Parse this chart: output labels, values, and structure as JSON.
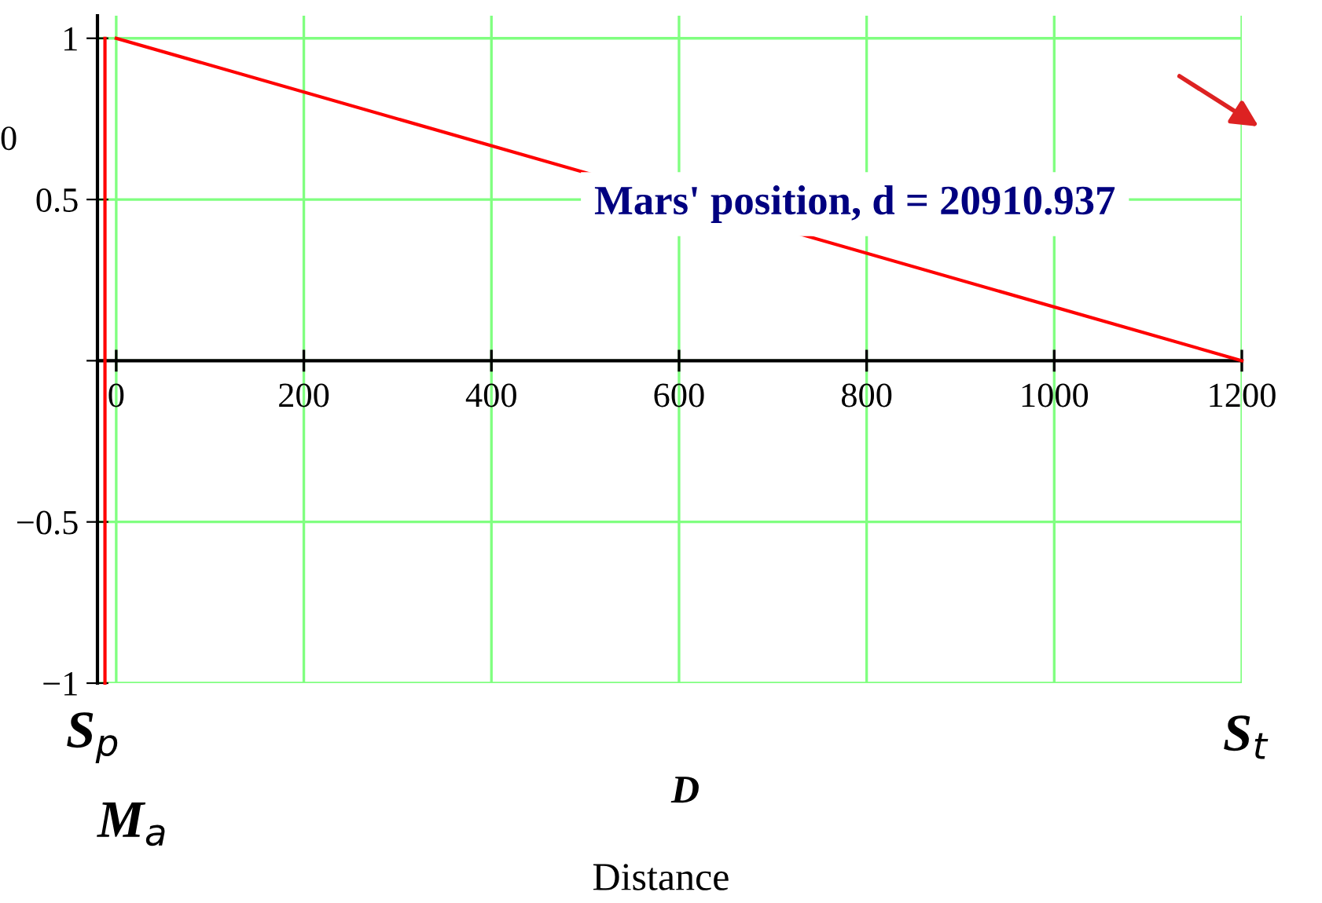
{
  "chart_data": {
    "type": "line",
    "xlabel": "Distance",
    "ylabel": "0",
    "series": [
      {
        "color": "#ff0000",
        "x": [
          0,
          1200
        ],
        "values": [
          1,
          0
        ]
      },
      {
        "color": "#ff0000",
        "x": [
          -12,
          -12
        ],
        "values": [
          -1,
          1
        ]
      }
    ],
    "xlim": [
      -20,
      1200
    ],
    "ylim": [
      -1,
      1.07
    ],
    "xticks": [
      0,
      200,
      400,
      600,
      800,
      1000,
      1200
    ],
    "yticks": [
      {
        "value": -1,
        "label": "−1"
      },
      {
        "value": -0.5,
        "label": "−0.5"
      },
      {
        "value": 0,
        "label": null
      },
      0.5,
      1
    ],
    "grid": true,
    "legend": false,
    "marker": "none",
    "line_style": "solid",
    "annotations": [
      "Mars' position, d = 20910.937",
      "S$_{p}$",
      "S$_{t}$",
      "D",
      "M$_{a}$"
    ]
  }
}
